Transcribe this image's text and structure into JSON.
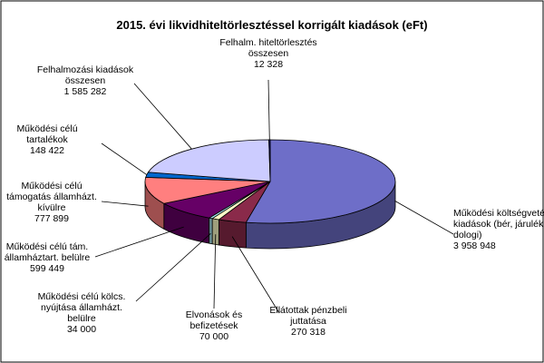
{
  "chart_data": {
    "type": "pie",
    "title": "2015. évi likvidhiteltörlesztéssel korrigált kiadások (eFt)",
    "slices": [
      {
        "label": [
          "Működési költségvetés",
          "kiadások (bér, járulék,",
          "dologi)"
        ],
        "value_label": "3 958 948",
        "value": 3958948,
        "color": "#6E6EC8"
      },
      {
        "label": [
          "Ellátottak pénzbeli",
          "juttatása"
        ],
        "value_label": "270 318",
        "value": 270318,
        "color": "#8A2A4A"
      },
      {
        "label": [
          "Elvonások és",
          "befizetések"
        ],
        "value_label": "70 000",
        "value": 70000,
        "color": "#FFFFC8"
      },
      {
        "label": [
          "Működési célú kölcs.",
          "nyújtása államházt.",
          "belülre"
        ],
        "value_label": "34 000",
        "value": 34000,
        "color": "#A8E6F0"
      },
      {
        "label": [
          "Működési célú tám.",
          "államháztart. belülre"
        ],
        "value_label": "599 449",
        "value": 599449,
        "color": "#660066"
      },
      {
        "label": [
          "Működési célú",
          "támogatás államházt.",
          "kívülre"
        ],
        "value_label": "777 899",
        "value": 777899,
        "color": "#FF7F7F"
      },
      {
        "label": [
          "Működési célú",
          "tartalékok"
        ],
        "value_label": "148 422",
        "value": 148422,
        "color": "#0066CC"
      },
      {
        "label": [
          "Felhalmozási kiadások",
          "összesen"
        ],
        "value_label": "1 585 282",
        "value": 1585282,
        "color": "#CCCCFF"
      },
      {
        "label": [
          "Felhalm. hiteltörlesztés",
          "összesen"
        ],
        "value_label": "12 328",
        "value": 12328,
        "color": "#000080"
      }
    ]
  }
}
